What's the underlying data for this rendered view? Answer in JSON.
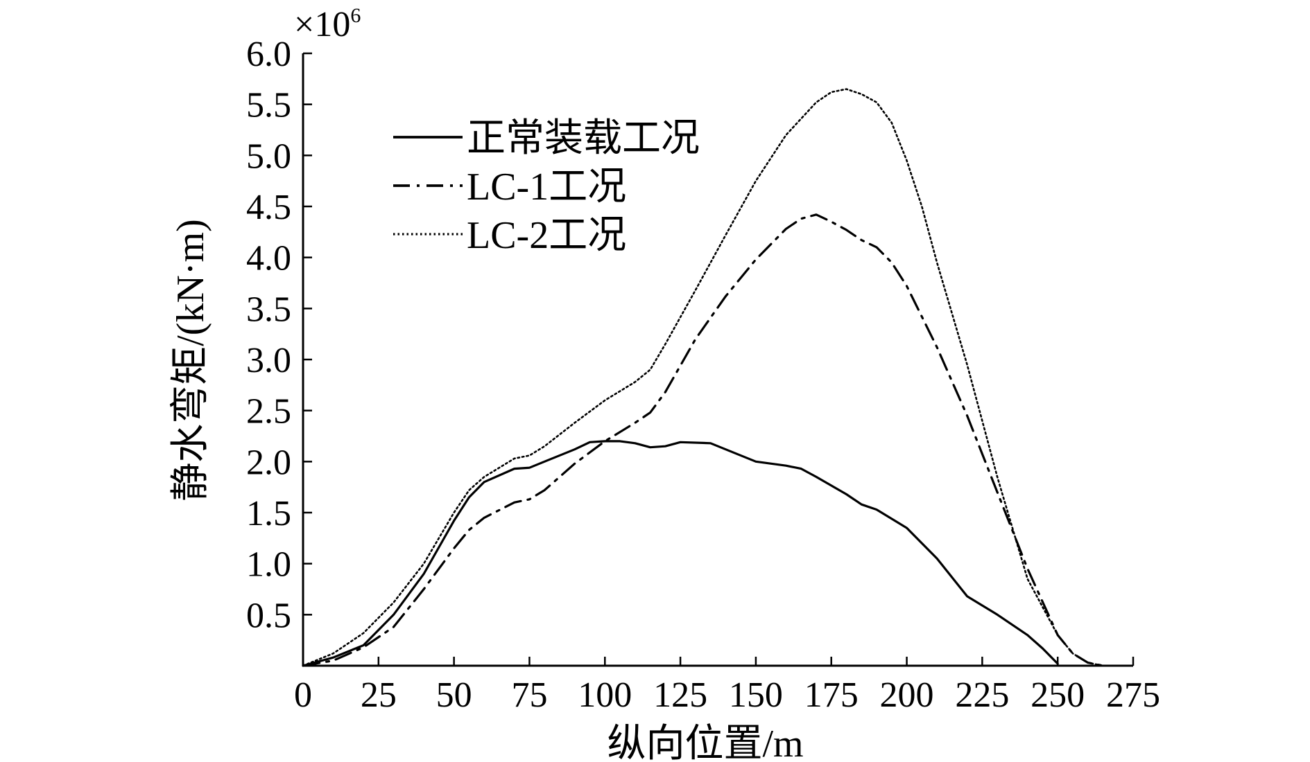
{
  "chart_data": {
    "type": "line",
    "xlabel": "纵向位置/m",
    "ylabel": "静水弯矩/(kN·m)",
    "y_multiplier": "×10",
    "y_multiplier_exp": "6",
    "xlim": [
      0,
      275
    ],
    "ylim": [
      0,
      6.0
    ],
    "x_ticks": [
      0,
      25,
      50,
      75,
      100,
      125,
      150,
      175,
      200,
      225,
      250,
      275
    ],
    "x_tick_labels": [
      "0",
      "25",
      "50",
      "75",
      "100",
      "125",
      "150",
      "175",
      "200",
      "225",
      "250",
      "275"
    ],
    "y_ticks": [
      0.5,
      1.0,
      1.5,
      2.0,
      2.5,
      3.0,
      3.5,
      4.0,
      4.5,
      5.0,
      5.5,
      6.0
    ],
    "y_tick_labels": [
      "0.5",
      "1.0",
      "1.5",
      "2.0",
      "2.5",
      "3.0",
      "3.5",
      "4.0",
      "4.5",
      "5.0",
      "5.5",
      "6.0"
    ],
    "grid": false,
    "legend_position": "top-left",
    "series": [
      {
        "name": "正常装载工况",
        "style": "solid",
        "color": "#000000",
        "x": [
          0,
          10,
          20,
          30,
          40,
          50,
          55,
          60,
          70,
          75,
          80,
          90,
          95,
          100,
          105,
          110,
          115,
          120,
          125,
          135,
          140,
          150,
          160,
          165,
          170,
          180,
          185,
          190,
          200,
          210,
          220,
          230,
          240,
          245,
          250
        ],
        "y": [
          0.0,
          0.08,
          0.2,
          0.5,
          0.9,
          1.42,
          1.65,
          1.8,
          1.93,
          1.94,
          2.0,
          2.12,
          2.19,
          2.2,
          2.2,
          2.18,
          2.14,
          2.15,
          2.19,
          2.18,
          2.12,
          2.0,
          1.96,
          1.93,
          1.85,
          1.68,
          1.58,
          1.53,
          1.35,
          1.05,
          0.68,
          0.5,
          0.3,
          0.17,
          0.02
        ]
      },
      {
        "name": "LC-1工况",
        "style": "dashdot",
        "color": "#000000",
        "x": [
          0,
          10,
          20,
          30,
          40,
          50,
          55,
          60,
          70,
          75,
          80,
          90,
          100,
          110,
          115,
          120,
          130,
          140,
          150,
          160,
          165,
          170,
          175,
          180,
          185,
          190,
          195,
          200,
          210,
          220,
          230,
          240,
          250,
          255,
          260,
          265
        ],
        "y": [
          0.0,
          0.05,
          0.18,
          0.38,
          0.75,
          1.15,
          1.33,
          1.45,
          1.6,
          1.63,
          1.72,
          1.98,
          2.2,
          2.38,
          2.48,
          2.68,
          3.2,
          3.62,
          3.98,
          4.28,
          4.38,
          4.42,
          4.35,
          4.27,
          4.17,
          4.1,
          3.95,
          3.72,
          3.12,
          2.45,
          1.7,
          0.95,
          0.3,
          0.12,
          0.03,
          0.0
        ]
      },
      {
        "name": "LC-2工况",
        "style": "dotted",
        "color": "#000000",
        "x": [
          0,
          10,
          20,
          30,
          40,
          50,
          55,
          60,
          70,
          75,
          80,
          90,
          100,
          110,
          115,
          120,
          130,
          140,
          150,
          160,
          170,
          175,
          180,
          185,
          190,
          195,
          200,
          205,
          210,
          220,
          230,
          240,
          250,
          255,
          260,
          265
        ],
        "y": [
          0.0,
          0.12,
          0.32,
          0.62,
          1.0,
          1.5,
          1.72,
          1.85,
          2.03,
          2.06,
          2.15,
          2.38,
          2.6,
          2.78,
          2.9,
          3.15,
          3.68,
          4.22,
          4.75,
          5.2,
          5.52,
          5.62,
          5.65,
          5.6,
          5.52,
          5.32,
          4.95,
          4.5,
          3.95,
          2.95,
          1.85,
          0.85,
          0.3,
          0.12,
          0.03,
          0.0
        ]
      }
    ]
  }
}
